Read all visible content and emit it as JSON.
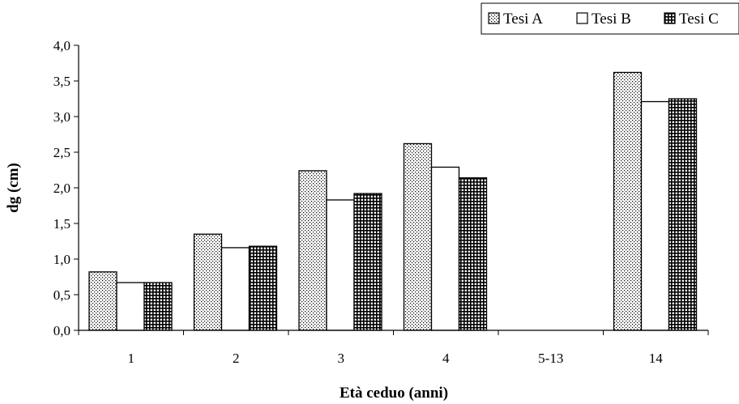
{
  "chart_data": {
    "type": "bar",
    "title": "",
    "xlabel": "Età ceduo (anni)",
    "ylabel": "dg (cm)",
    "categories": [
      "1",
      "2",
      "3",
      "4",
      "5-13",
      "14"
    ],
    "series": [
      {
        "name": "Tesi A",
        "pattern": "dots",
        "values": [
          0.82,
          1.35,
          2.24,
          2.62,
          null,
          3.62
        ]
      },
      {
        "name": "Tesi B",
        "pattern": "plain",
        "values": [
          0.67,
          1.16,
          1.83,
          2.29,
          null,
          3.21
        ]
      },
      {
        "name": "Tesi C",
        "pattern": "grid",
        "values": [
          0.67,
          1.18,
          1.92,
          2.14,
          null,
          3.25
        ]
      }
    ],
    "ylim": [
      0,
      4
    ],
    "yticks": [
      "0,0",
      "0,5",
      "1,0",
      "1,5",
      "2,0",
      "2,5",
      "3,0",
      "3,5",
      "4,0"
    ],
    "grid": false,
    "legend_position": "top-right"
  }
}
